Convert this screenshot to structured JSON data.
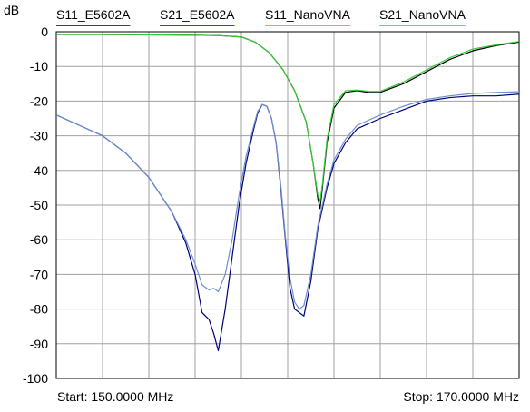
{
  "chart_data": {
    "type": "line",
    "title": "",
    "ylabel": "dB",
    "xlim": [
      150.0,
      170.0
    ],
    "ylim": [
      -100,
      0
    ],
    "x_divisions": 10,
    "y_ticks": [
      0,
      -10,
      -20,
      -30,
      -40,
      -50,
      -60,
      -70,
      -80,
      -90,
      -100
    ],
    "grid": true,
    "legend_position": "top",
    "start_label": "Start: 150.0000 MHz",
    "stop_label": "Stop: 170.0000 MHz",
    "series": [
      {
        "name": "S11_E5602A",
        "color": "#000000",
        "x": [
          150,
          152,
          154,
          156,
          157,
          158,
          158.6,
          159.2,
          159.8,
          160.3,
          160.8,
          161.1,
          161.3,
          161.4,
          161.5,
          161.7,
          162,
          162.5,
          163,
          163.5,
          164,
          165,
          166,
          167,
          168,
          169,
          170
        ],
        "y": [
          -0.8,
          -0.8,
          -0.9,
          -1.0,
          -1.1,
          -1.5,
          -3.0,
          -6.0,
          -11.0,
          -17.0,
          -26.0,
          -38.0,
          -48.0,
          -51.0,
          -45.0,
          -32.0,
          -22.0,
          -17.5,
          -17.0,
          -17.5,
          -17.5,
          -15.0,
          -11.5,
          -8.0,
          -5.5,
          -4.0,
          -3.0
        ]
      },
      {
        "name": "S21_E5602A",
        "color": "#00007a",
        "x": [
          150,
          151,
          152,
          153,
          154,
          155,
          155.6,
          156,
          156.3,
          156.6,
          156.8,
          157,
          157.3,
          157.6,
          157.9,
          158.2,
          158.5,
          158.7,
          158.9,
          159.1,
          159.3,
          159.5,
          159.7,
          159.9,
          160.1,
          160.3,
          160.5,
          160.7,
          161,
          161.3,
          161.7,
          162,
          162.5,
          163,
          164,
          165,
          166,
          167,
          168,
          169,
          170
        ],
        "y": [
          -24,
          -27,
          -30,
          -35,
          -42,
          -52,
          -61,
          -70,
          -81,
          -83,
          -87,
          -92,
          -80,
          -65,
          -50,
          -38,
          -29,
          -23.5,
          -21,
          -21.5,
          -25,
          -32,
          -45,
          -60,
          -74,
          -80,
          -81,
          -82,
          -72,
          -57,
          -45,
          -38,
          -32,
          -28,
          -25,
          -22.5,
          -20,
          -19,
          -18.5,
          -18.5,
          -18
        ]
      },
      {
        "name": "S11_NanoVNA",
        "color": "#33cc33",
        "x": [
          150,
          152,
          154,
          156,
          157,
          158,
          158.6,
          159.2,
          159.8,
          160.3,
          160.8,
          161.1,
          161.3,
          161.4,
          161.5,
          161.7,
          162,
          162.5,
          163,
          163.5,
          164,
          165,
          166,
          167,
          168,
          169,
          170
        ],
        "y": [
          -0.8,
          -0.8,
          -0.9,
          -1.0,
          -1.1,
          -1.5,
          -3.0,
          -6.0,
          -11.0,
          -17.0,
          -26.0,
          -38.0,
          -47.0,
          -49.0,
          -44.0,
          -31.0,
          -21.0,
          -17.0,
          -16.8,
          -17.2,
          -17.2,
          -14.5,
          -11.0,
          -7.5,
          -5.0,
          -3.8,
          -2.8
        ]
      },
      {
        "name": "S21_NanoVNA",
        "color": "#6d8fd1",
        "x": [
          150,
          151,
          152,
          153,
          154,
          155,
          155.6,
          156,
          156.3,
          156.6,
          156.8,
          157,
          157.3,
          157.6,
          157.9,
          158.2,
          158.5,
          158.7,
          158.9,
          159.1,
          159.3,
          159.5,
          159.7,
          159.9,
          160.1,
          160.3,
          160.5,
          160.7,
          161,
          161.3,
          161.7,
          162,
          162.5,
          163,
          164,
          165,
          166,
          167,
          168,
          169,
          170
        ],
        "y": [
          -24,
          -27,
          -30,
          -35,
          -42,
          -52,
          -60,
          -67,
          -73,
          -74.5,
          -74,
          -75,
          -70,
          -60,
          -47,
          -36,
          -28,
          -23,
          -21,
          -21.5,
          -25,
          -32,
          -44,
          -59,
          -71,
          -78,
          -80,
          -79,
          -70,
          -56,
          -44,
          -37,
          -31,
          -27,
          -24,
          -21.5,
          -19.5,
          -18.5,
          -17.8,
          -17.5,
          -17.3
        ]
      }
    ]
  }
}
